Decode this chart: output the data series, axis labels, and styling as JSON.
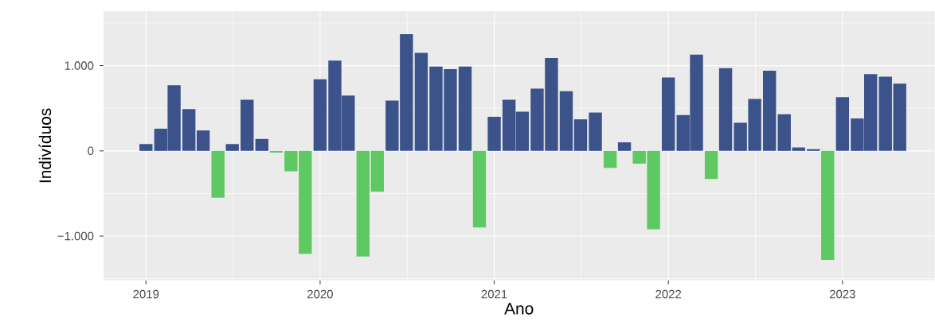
{
  "chart_data": {
    "type": "bar",
    "xlabel": "Ano",
    "ylabel": "Indivíduos",
    "x": [
      "2019-01",
      "2019-02",
      "2019-03",
      "2019-04",
      "2019-05",
      "2019-06",
      "2019-07",
      "2019-08",
      "2019-09",
      "2019-10",
      "2019-11",
      "2019-12",
      "2020-01",
      "2020-02",
      "2020-03",
      "2020-04",
      "2020-05",
      "2020-06",
      "2020-07",
      "2020-08",
      "2020-09",
      "2020-10",
      "2020-11",
      "2020-12",
      "2021-01",
      "2021-02",
      "2021-03",
      "2021-04",
      "2021-05",
      "2021-06",
      "2021-07",
      "2021-08",
      "2021-09",
      "2021-10",
      "2021-11",
      "2021-12",
      "2022-01",
      "2022-02",
      "2022-03",
      "2022-04",
      "2022-05",
      "2022-06",
      "2022-07",
      "2022-08",
      "2022-09",
      "2022-10",
      "2022-11",
      "2022-12",
      "2023-01",
      "2023-02",
      "2023-03",
      "2023-04",
      "2023-05"
    ],
    "values": [
      80,
      260,
      770,
      490,
      240,
      -550,
      80,
      600,
      140,
      -20,
      -240,
      -1210,
      840,
      1060,
      650,
      -1240,
      -480,
      590,
      1370,
      1150,
      990,
      960,
      990,
      -900,
      400,
      600,
      460,
      730,
      1090,
      700,
      370,
      450,
      -200,
      100,
      -150,
      -920,
      860,
      420,
      1130,
      -330,
      970,
      330,
      610,
      940,
      430,
      40,
      20,
      -1280,
      630,
      380,
      900,
      870,
      790
    ],
    "colors": [
      "#3b528b",
      "#3b528b",
      "#3b528b",
      "#3b528b",
      "#3b528b",
      "#5ec962",
      "#3b528b",
      "#3b528b",
      "#3b528b",
      "#5ec962",
      "#5ec962",
      "#5ec962",
      "#3b528b",
      "#3b528b",
      "#3b528b",
      "#5ec962",
      "#5ec962",
      "#3b528b",
      "#3b528b",
      "#3b528b",
      "#3b528b",
      "#3b528b",
      "#3b528b",
      "#5ec962",
      "#3b528b",
      "#3b528b",
      "#3b528b",
      "#3b528b",
      "#3b528b",
      "#3b528b",
      "#3b528b",
      "#3b528b",
      "#5ec962",
      "#3b528b",
      "#5ec962",
      "#5ec962",
      "#3b528b",
      "#3b528b",
      "#3b528b",
      "#5ec962",
      "#3b528b",
      "#3b528b",
      "#3b528b",
      "#3b528b",
      "#3b528b",
      "#3b528b",
      "#3b528b",
      "#5ec962",
      "#3b528b",
      "#3b528b",
      "#3b528b",
      "#3b528b",
      "#3b528b"
    ],
    "xlim": [
      "2018-10-04",
      "2023-07-13"
    ],
    "xticks": [
      "2019",
      "2020",
      "2021",
      "2022",
      "2023"
    ],
    "ylim": [
      -1520,
      1640
    ],
    "yticks": [
      {
        "value": -1000,
        "label": "−1.000"
      },
      0,
      {
        "value": 1000,
        "label": "1.000"
      }
    ],
    "grid": true
  }
}
